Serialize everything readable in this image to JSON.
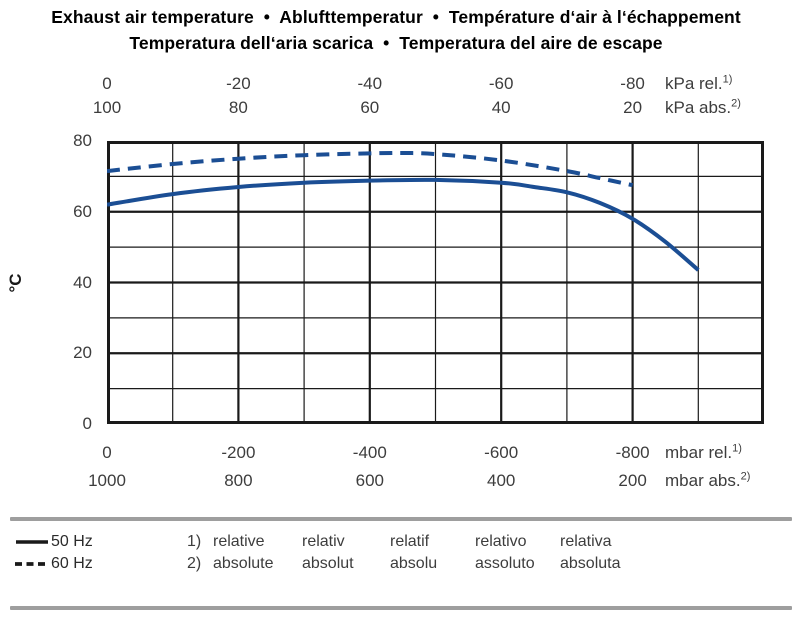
{
  "title": {
    "line1": "Exhaust air temperature  •  Ablufttemperatur  •  Température d‘air à l‘échappement",
    "line2": "Temperatura dell‘aria scarica  •  Temperatura del aire de escape"
  },
  "axes": {
    "top_rel": {
      "values": [
        "0",
        "-20",
        "-40",
        "-60",
        "-80"
      ],
      "unit": "kPa rel.",
      "sup": "1)"
    },
    "top_abs": {
      "values": [
        "100",
        "80",
        "60",
        "40",
        "20"
      ],
      "unit": "kPa abs.",
      "sup": "2)"
    },
    "bottom_rel": {
      "values": [
        "0",
        "-200",
        "-400",
        "-600",
        "-800"
      ],
      "unit": "mbar rel.",
      "sup": "1)"
    },
    "bottom_abs": {
      "values": [
        "1000",
        "800",
        "600",
        "400",
        "200"
      ],
      "unit": "mbar abs.",
      "sup": "2)"
    },
    "y": {
      "values": [
        "80",
        "60",
        "40",
        "20",
        "0"
      ],
      "unit": "°C"
    }
  },
  "legend": [
    {
      "label": "50 Hz",
      "style": "solid"
    },
    {
      "label": "60 Hz",
      "style": "dashed"
    }
  ],
  "footnotes": [
    {
      "marker": "1)",
      "terms": [
        "relative",
        "relativ",
        "relatif",
        "relativo",
        "relativa"
      ]
    },
    {
      "marker": "2)",
      "terms": [
        "absolute",
        "absolut",
        "absolu",
        "assoluto",
        "absoluta"
      ]
    }
  ],
  "colors": {
    "curve": "#1b4e94",
    "grid": "#1a1a1a",
    "rule_gray": "#9e9e9e",
    "tick_text": "#3d3d3d",
    "title_text": "#000000"
  },
  "chart_data": {
    "type": "line",
    "title": "Exhaust air temperature vs suction pressure",
    "ylabel": "°C",
    "ylim": [
      0,
      80
    ],
    "y_major_step": 20,
    "y_minor_step": 10,
    "x_unit_primary": "mbar rel.",
    "xlim_mbar_rel": [
      0,
      -1000
    ],
    "x_major_step_mbar": 200,
    "x_minor_step_mbar": 100,
    "grid": "on",
    "legend_position": "below-left",
    "x_axis_scales": [
      {
        "unit": "kPa rel.",
        "ticks": [
          0,
          -20,
          -40,
          -60,
          -80
        ],
        "footnote": "relative"
      },
      {
        "unit": "kPa abs.",
        "ticks": [
          100,
          80,
          60,
          40,
          20
        ],
        "footnote": "absolute"
      },
      {
        "unit": "mbar rel.",
        "ticks": [
          0,
          -200,
          -400,
          -600,
          -800
        ],
        "footnote": "relative"
      },
      {
        "unit": "mbar abs.",
        "ticks": [
          1000,
          800,
          600,
          400,
          200
        ],
        "footnote": "absolute"
      }
    ],
    "series": [
      {
        "name": "50 Hz",
        "line": "solid",
        "x_mbar_rel": [
          0,
          -100,
          -200,
          -300,
          -400,
          -500,
          -600,
          -650,
          -700,
          -750,
          -800,
          -850,
          -900
        ],
        "temp_c": [
          62,
          65,
          67,
          68.2,
          68.8,
          69,
          68.2,
          67,
          65.5,
          62.5,
          58,
          51.5,
          43.5
        ]
      },
      {
        "name": "60 Hz",
        "line": "dashed",
        "x_mbar_rel": [
          0,
          -100,
          -200,
          -300,
          -400,
          -450,
          -500,
          -600,
          -700,
          -750,
          -800
        ],
        "temp_c": [
          71.5,
          73.5,
          75,
          76,
          76.5,
          76.6,
          76.3,
          74.5,
          71.5,
          69.5,
          67.5
        ]
      }
    ]
  }
}
